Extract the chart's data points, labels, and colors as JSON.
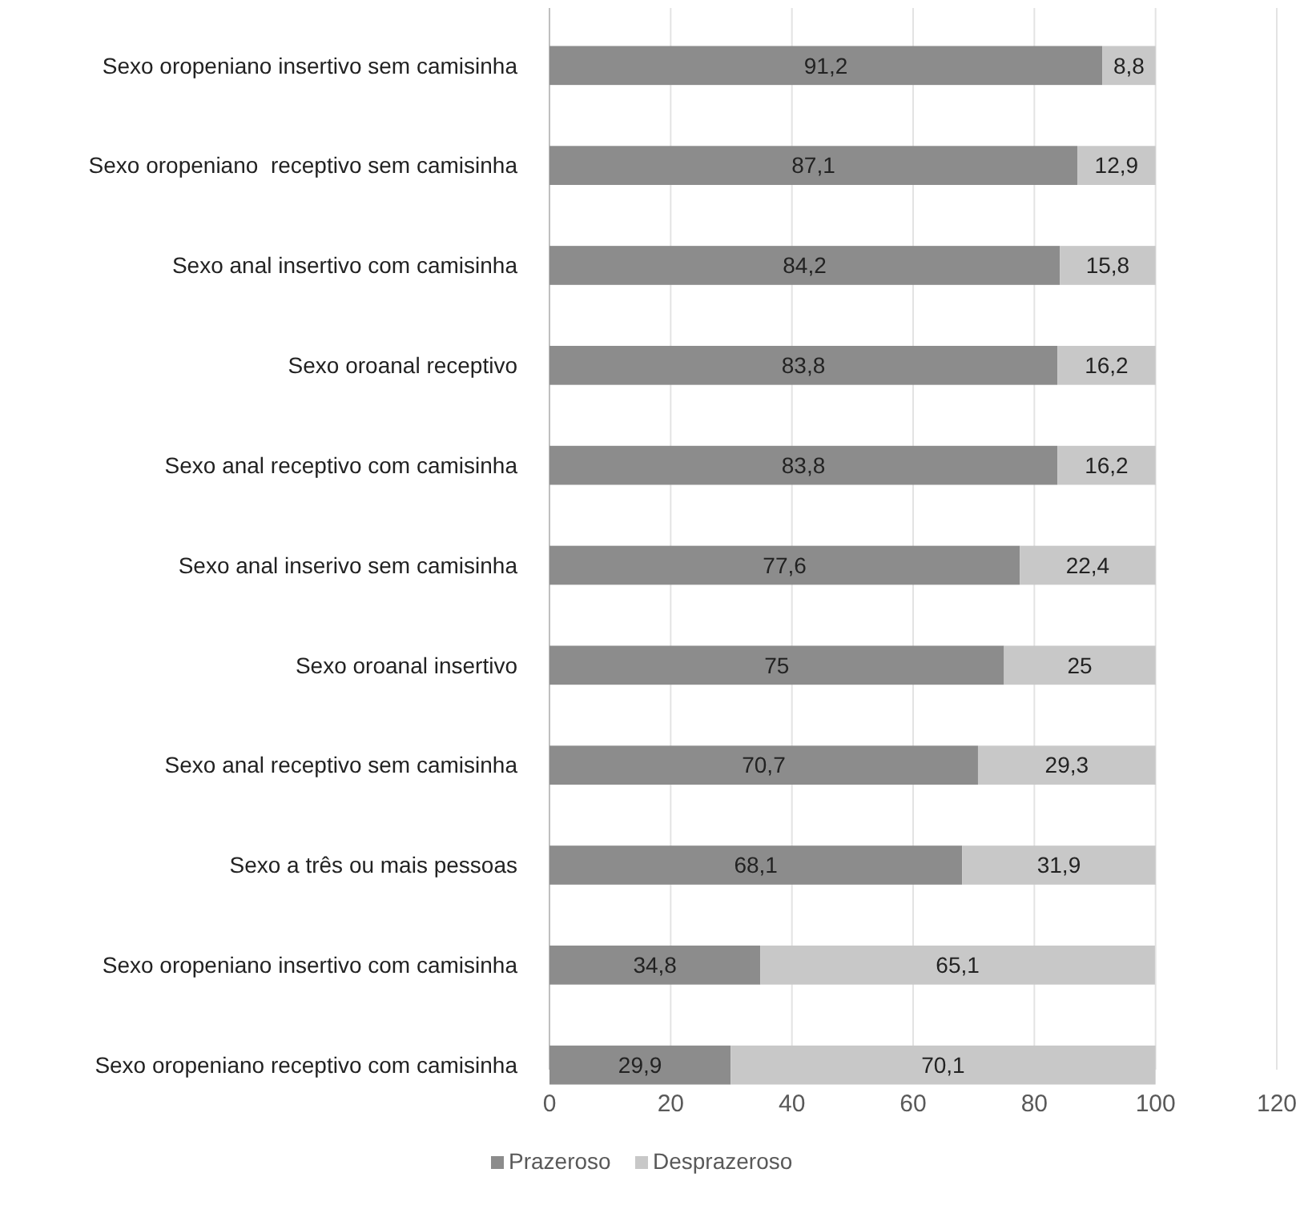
{
  "chart_data": {
    "type": "bar",
    "orientation": "horizontal",
    "stacked": true,
    "categories": [
      "Sexo oropeniano insertivo sem camisinha",
      "Sexo oropeniano  receptivo sem camisinha",
      "Sexo anal insertivo com camisinha",
      "Sexo oroanal receptivo",
      "Sexo anal receptivo com camisinha",
      "Sexo anal inserivo sem camisinha",
      "Sexo oroanal insertivo",
      "Sexo anal receptivo sem camisinha",
      "Sexo a três ou mais pessoas",
      "Sexo oropeniano insertivo com camisinha",
      "Sexo oropeniano receptivo com camisinha"
    ],
    "series": [
      {
        "name": "Prazeroso",
        "color": "#8c8c8c",
        "values": [
          91.2,
          87.1,
          84.2,
          83.8,
          83.8,
          77.6,
          75,
          70.7,
          68.1,
          34.8,
          29.9
        ],
        "value_labels": [
          "91,2",
          "87,1",
          "84,2",
          "83,8",
          "83,8",
          "77,6",
          "75",
          "70,7",
          "68,1",
          "34,8",
          "29,9"
        ]
      },
      {
        "name": "Desprazeroso",
        "color": "#c8c8c8",
        "values": [
          8.8,
          12.9,
          15.8,
          16.2,
          16.2,
          22.4,
          25,
          29.3,
          31.9,
          65.1,
          70.1
        ],
        "value_labels": [
          "8,8",
          "12,9",
          "15,8",
          "16,2",
          "16,2",
          "22,4",
          "25",
          "29,3",
          "31,9",
          "65,1",
          "70,1"
        ]
      }
    ],
    "xlim": [
      0,
      120
    ],
    "xticks": [
      0,
      20,
      40,
      60,
      80,
      100,
      120
    ],
    "grid": "x",
    "legend": "bottom"
  }
}
